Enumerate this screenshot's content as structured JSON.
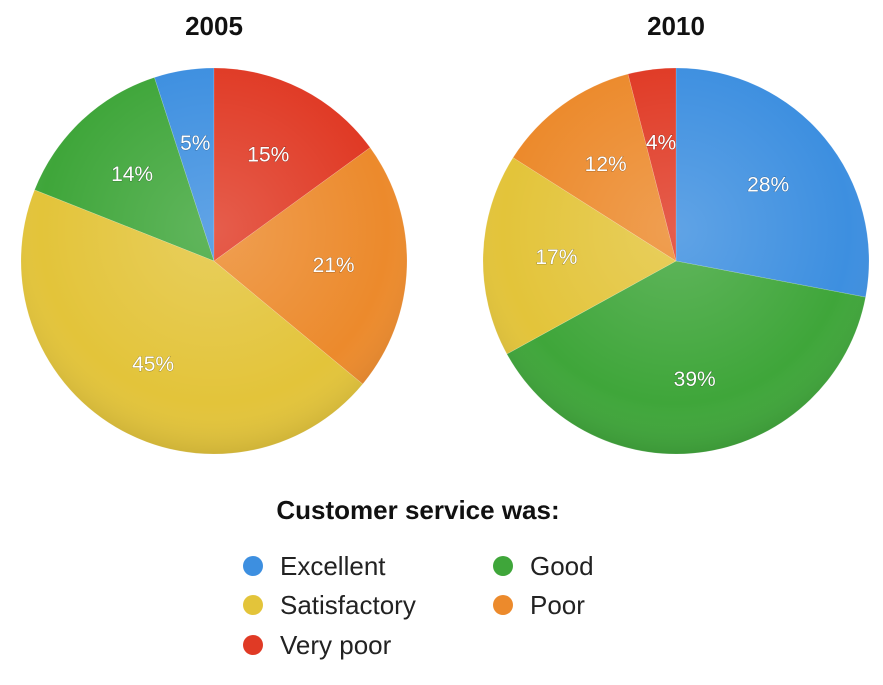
{
  "chart_data": [
    {
      "type": "pie",
      "title": "2005",
      "slices": [
        {
          "category": "Excellent",
          "value": 5,
          "label": "5%"
        },
        {
          "category": "Good",
          "value": 14,
          "label": "14%"
        },
        {
          "category": "Satisfactory",
          "value": 45,
          "label": "45%"
        },
        {
          "category": "Poor",
          "value": 21,
          "label": "21%"
        },
        {
          "category": "Very poor",
          "value": 15,
          "label": "15%"
        }
      ]
    },
    {
      "type": "pie",
      "title": "2010",
      "slices": [
        {
          "category": "Excellent",
          "value": 28,
          "label": "28%"
        },
        {
          "category": "Good",
          "value": 39,
          "label": "39%"
        },
        {
          "category": "Satisfactory",
          "value": 17,
          "label": "17%"
        },
        {
          "category": "Poor",
          "value": 12,
          "label": "12%"
        },
        {
          "category": "Very poor",
          "value": 4,
          "label": "4%"
        }
      ]
    }
  ],
  "legend": {
    "title": "Customer service was:",
    "placement": "bottom",
    "items": [
      {
        "name": "Excellent",
        "color": "#3d8fe0"
      },
      {
        "name": "Good",
        "color": "#3fa63a"
      },
      {
        "name": "Satisfactory",
        "color": "#e3c43a"
      },
      {
        "name": "Poor",
        "color": "#ec8a2c"
      },
      {
        "name": "Very poor",
        "color": "#e03a25"
      }
    ]
  }
}
